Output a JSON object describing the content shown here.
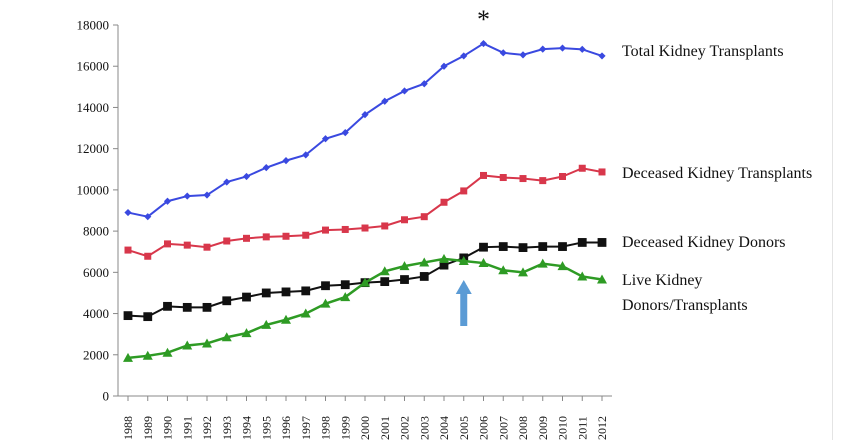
{
  "chart_data": {
    "type": "line",
    "title": "",
    "xlabel": "",
    "ylabel": "",
    "categories": [
      "1988",
      "1989",
      "1990",
      "1991",
      "1992",
      "1993",
      "1994",
      "1995",
      "1996",
      "1997",
      "1998",
      "1999",
      "2000",
      "2001",
      "2002",
      "2003",
      "2004",
      "2005",
      "2006",
      "2007",
      "2008",
      "2009",
      "2010",
      "2011",
      "2012"
    ],
    "ylim": [
      0,
      18000
    ],
    "yticks": [
      0,
      2000,
      4000,
      6000,
      8000,
      10000,
      12000,
      14000,
      16000,
      18000
    ],
    "grid": false,
    "legend": "series labels printed at right end of each line",
    "series": [
      {
        "name": "Total Kidney Transplants",
        "color": "#3a49e0",
        "marker": "diamond",
        "values": [
          8900,
          8700,
          9450,
          9700,
          9750,
          10380,
          10650,
          11080,
          11420,
          11700,
          12480,
          12780,
          13650,
          14300,
          14800,
          15150,
          16000,
          16500,
          17100,
          16650,
          16550,
          16830,
          16880,
          16820,
          16500
        ]
      },
      {
        "name": "Deceased Kidney Transplants",
        "color": "#d8374b",
        "marker": "square",
        "values": [
          7080,
          6780,
          7380,
          7320,
          7220,
          7520,
          7650,
          7720,
          7750,
          7800,
          8050,
          8080,
          8150,
          8250,
          8550,
          8700,
          9400,
          9950,
          10700,
          10600,
          10550,
          10450,
          10650,
          11050,
          10870
        ]
      },
      {
        "name": "Deceased Kidney Donors",
        "color": "#111111",
        "marker": "square",
        "values": [
          3900,
          3850,
          4350,
          4300,
          4300,
          4620,
          4800,
          5000,
          5050,
          5100,
          5350,
          5400,
          5500,
          5550,
          5650,
          5800,
          6350,
          6700,
          7220,
          7250,
          7200,
          7250,
          7250,
          7450,
          7450
        ]
      },
      {
        "name": "Live Kidney\nDonors/Transplants",
        "color": "#2e9b24",
        "marker": "triangle",
        "values": [
          1850,
          1950,
          2100,
          2450,
          2550,
          2850,
          3050,
          3450,
          3700,
          4000,
          4480,
          4800,
          5500,
          6050,
          6300,
          6480,
          6650,
          6550,
          6450,
          6100,
          6000,
          6420,
          6300,
          5800,
          5650
        ]
      }
    ],
    "annotations": [
      {
        "type": "asterisk",
        "text": "*",
        "x": "2006"
      },
      {
        "type": "arrow",
        "direction": "up",
        "color": "#5b9bd5",
        "x": "2005"
      }
    ]
  }
}
